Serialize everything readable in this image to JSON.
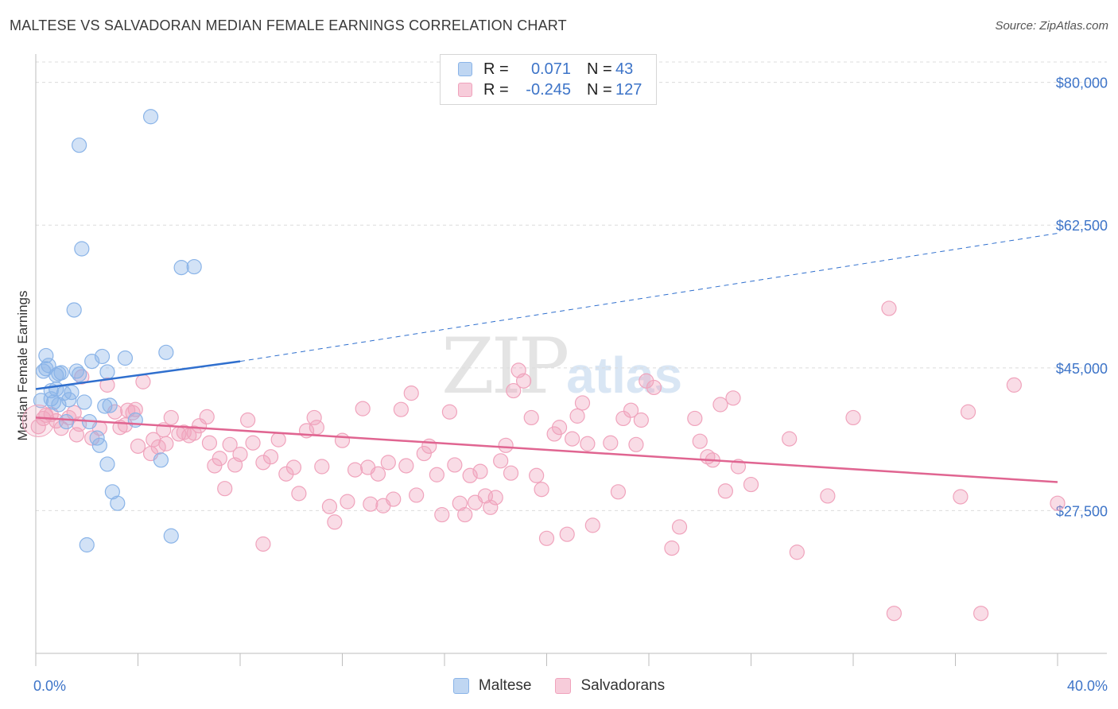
{
  "title": "MALTESE VS SALVADORAN MEDIAN FEMALE EARNINGS CORRELATION CHART",
  "source": "Source: ZipAtlas.com",
  "watermark": {
    "zip": "ZIP",
    "atlas": "atlas"
  },
  "legend_top": [
    {
      "r_label": "R =",
      "r_value": "0.071",
      "n_label": "N =",
      "n_value": "43",
      "color": "#8ab4e8"
    },
    {
      "r_label": "R =",
      "r_value": "-0.245",
      "n_label": "N =",
      "n_value": "127",
      "color": "#f0a3bc"
    }
  ],
  "legend_bottom": [
    {
      "label": "Maltese",
      "color": "#8ab4e8"
    },
    {
      "label": "Salvadorans",
      "color": "#f0a3bc"
    }
  ],
  "chart_data": {
    "type": "scatter",
    "title": "MALTESE VS SALVADORAN MEDIAN FEMALE EARNINGS CORRELATION CHART",
    "xlabel": "",
    "ylabel": "Median Female Earnings",
    "xlim": [
      0,
      40
    ],
    "ylim": [
      10000,
      82500
    ],
    "x_tick_labels": [
      "0.0%",
      "40.0%"
    ],
    "y_ticks": [
      27500,
      45000,
      62500,
      80000
    ],
    "y_tick_labels": [
      "$27,500",
      "$45,000",
      "$62,500",
      "$80,000"
    ],
    "grid": true,
    "legend": "top-center",
    "series": [
      {
        "name": "Maltese",
        "color": "#8ab4e8",
        "line_color": "#2f6fce",
        "trend": {
          "x": [
            0,
            8,
            40
          ],
          "y": [
            42400,
            45800,
            61500
          ],
          "solid_until_x": 8
        },
        "points": [
          [
            0.2,
            41000
          ],
          [
            0.3,
            44600
          ],
          [
            0.4,
            46500
          ],
          [
            0.5,
            45300
          ],
          [
            0.6,
            42200
          ],
          [
            0.6,
            41200
          ],
          [
            0.7,
            40800
          ],
          [
            0.8,
            42400
          ],
          [
            0.8,
            44100
          ],
          [
            0.9,
            44300
          ],
          [
            1.1,
            41900
          ],
          [
            1.2,
            38400
          ],
          [
            1.3,
            41100
          ],
          [
            1.4,
            42000
          ],
          [
            1.5,
            52100
          ],
          [
            1.6,
            44600
          ],
          [
            1.7,
            44200
          ],
          [
            1.7,
            72300
          ],
          [
            1.8,
            59600
          ],
          [
            1.9,
            40800
          ],
          [
            2.0,
            23300
          ],
          [
            2.1,
            38400
          ],
          [
            2.2,
            45800
          ],
          [
            2.4,
            36400
          ],
          [
            2.5,
            35500
          ],
          [
            2.6,
            46400
          ],
          [
            2.7,
            40300
          ],
          [
            2.8,
            33200
          ],
          [
            2.8,
            44500
          ],
          [
            2.9,
            40400
          ],
          [
            3.0,
            29800
          ],
          [
            3.2,
            28400
          ],
          [
            3.5,
            46200
          ],
          [
            3.9,
            38600
          ],
          [
            4.5,
            75800
          ],
          [
            4.9,
            33700
          ],
          [
            5.1,
            46900
          ],
          [
            5.3,
            24400
          ],
          [
            5.7,
            57300
          ],
          [
            6.2,
            57400
          ],
          [
            0.4,
            44900
          ],
          [
            1.0,
            44400
          ],
          [
            0.9,
            40500
          ]
        ]
      },
      {
        "name": "Salvadorans",
        "color": "#f0a3bc",
        "line_color": "#e06591",
        "trend": {
          "x": [
            0,
            40
          ],
          "y": [
            38900,
            31000
          ]
        },
        "points": [
          [
            0.1,
            37800
          ],
          [
            0.3,
            38800
          ],
          [
            0.4,
            39200
          ],
          [
            0.6,
            39300
          ],
          [
            0.8,
            38500
          ],
          [
            1.0,
            37600
          ],
          [
            1.3,
            38900
          ],
          [
            1.5,
            39500
          ],
          [
            1.6,
            36800
          ],
          [
            1.7,
            38100
          ],
          [
            1.8,
            43900
          ],
          [
            2.2,
            36400
          ],
          [
            2.5,
            37600
          ],
          [
            2.8,
            42900
          ],
          [
            3.1,
            39600
          ],
          [
            3.3,
            37700
          ],
          [
            3.5,
            38000
          ],
          [
            3.6,
            39800
          ],
          [
            3.8,
            39500
          ],
          [
            3.9,
            39900
          ],
          [
            4.0,
            35400
          ],
          [
            4.2,
            43300
          ],
          [
            4.5,
            34500
          ],
          [
            4.6,
            36200
          ],
          [
            4.8,
            35300
          ],
          [
            5.0,
            37400
          ],
          [
            5.1,
            35700
          ],
          [
            5.3,
            38900
          ],
          [
            5.6,
            36900
          ],
          [
            5.8,
            37100
          ],
          [
            6.0,
            36700
          ],
          [
            6.2,
            37000
          ],
          [
            6.4,
            37900
          ],
          [
            6.7,
            39000
          ],
          [
            6.8,
            35800
          ],
          [
            7.0,
            33000
          ],
          [
            7.2,
            33900
          ],
          [
            7.4,
            30200
          ],
          [
            7.6,
            35600
          ],
          [
            7.8,
            33100
          ],
          [
            8.0,
            34400
          ],
          [
            8.3,
            38600
          ],
          [
            8.5,
            35800
          ],
          [
            8.9,
            23400
          ],
          [
            8.9,
            33400
          ],
          [
            9.2,
            34100
          ],
          [
            9.5,
            36200
          ],
          [
            9.8,
            32000
          ],
          [
            10.1,
            32800
          ],
          [
            10.3,
            29600
          ],
          [
            10.6,
            37300
          ],
          [
            10.9,
            38900
          ],
          [
            11.0,
            37700
          ],
          [
            11.2,
            32900
          ],
          [
            11.5,
            28000
          ],
          [
            11.7,
            26100
          ],
          [
            12.0,
            36100
          ],
          [
            12.2,
            28600
          ],
          [
            12.5,
            32500
          ],
          [
            12.8,
            40000
          ],
          [
            13.0,
            32800
          ],
          [
            13.1,
            28300
          ],
          [
            13.4,
            32000
          ],
          [
            13.6,
            28100
          ],
          [
            13.8,
            33400
          ],
          [
            14.0,
            28900
          ],
          [
            14.3,
            39900
          ],
          [
            14.5,
            33000
          ],
          [
            14.7,
            41900
          ],
          [
            14.9,
            29400
          ],
          [
            15.2,
            34500
          ],
          [
            15.4,
            35400
          ],
          [
            15.7,
            31900
          ],
          [
            15.9,
            27000
          ],
          [
            16.2,
            39600
          ],
          [
            16.4,
            33100
          ],
          [
            16.6,
            28400
          ],
          [
            16.8,
            27000
          ],
          [
            17.0,
            31800
          ],
          [
            17.2,
            28500
          ],
          [
            17.4,
            32300
          ],
          [
            17.6,
            29300
          ],
          [
            17.8,
            27900
          ],
          [
            18.0,
            29100
          ],
          [
            18.2,
            33600
          ],
          [
            18.4,
            35500
          ],
          [
            18.6,
            32100
          ],
          [
            18.7,
            42200
          ],
          [
            18.9,
            44700
          ],
          [
            19.1,
            43400
          ],
          [
            19.4,
            38900
          ],
          [
            19.6,
            31800
          ],
          [
            19.8,
            30100
          ],
          [
            20.0,
            24100
          ],
          [
            20.3,
            36900
          ],
          [
            20.5,
            37700
          ],
          [
            20.8,
            24600
          ],
          [
            21.0,
            36300
          ],
          [
            21.2,
            39100
          ],
          [
            21.4,
            40700
          ],
          [
            21.6,
            35700
          ],
          [
            21.8,
            25700
          ],
          [
            22.5,
            35800
          ],
          [
            22.8,
            29800
          ],
          [
            23.0,
            38800
          ],
          [
            23.3,
            39800
          ],
          [
            23.5,
            35600
          ],
          [
            23.7,
            38600
          ],
          [
            23.9,
            43400
          ],
          [
            24.2,
            42600
          ],
          [
            24.9,
            22900
          ],
          [
            25.2,
            25500
          ],
          [
            25.8,
            38800
          ],
          [
            26.0,
            36000
          ],
          [
            26.3,
            34100
          ],
          [
            26.5,
            33700
          ],
          [
            26.8,
            40500
          ],
          [
            27.0,
            29900
          ],
          [
            27.3,
            41300
          ],
          [
            27.5,
            32900
          ],
          [
            28.0,
            30700
          ],
          [
            29.5,
            36300
          ],
          [
            29.8,
            22400
          ],
          [
            31.0,
            29300
          ],
          [
            32.0,
            38900
          ],
          [
            33.4,
            52300
          ],
          [
            33.6,
            14900
          ],
          [
            36.2,
            29200
          ],
          [
            36.5,
            39600
          ],
          [
            37.0,
            14900
          ],
          [
            38.3,
            42900
          ],
          [
            40.0,
            28400
          ]
        ]
      }
    ]
  }
}
